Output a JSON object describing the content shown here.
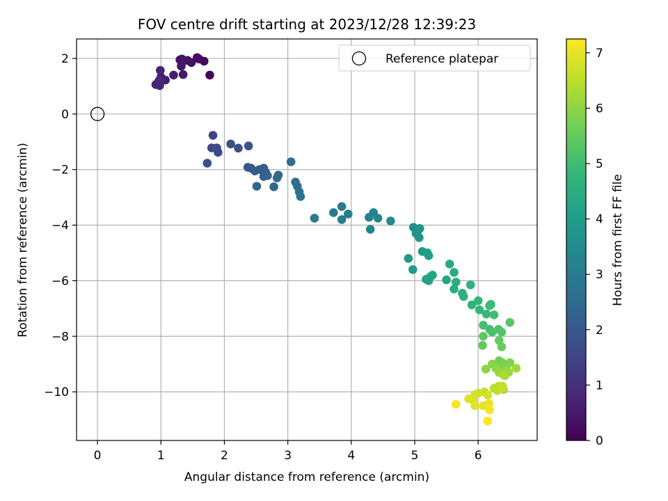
{
  "chart_data": {
    "type": "scatter",
    "title": "FOV centre drift starting at 2023/12/28 12:39:23",
    "xlabel": "Angular distance from reference (arcmin)",
    "ylabel": "Rotation from reference (arcmin)",
    "xlim": [
      -0.33,
      6.93
    ],
    "ylim": [
      -11.75,
      2.7
    ],
    "xticks": [
      0,
      1,
      2,
      3,
      4,
      5,
      6
    ],
    "yticks": [
      2,
      0,
      -2,
      -4,
      -6,
      -8,
      -10
    ],
    "xtick_labels": [
      "0",
      "1",
      "2",
      "3",
      "4",
      "5",
      "6"
    ],
    "ytick_labels": [
      "2",
      "0",
      "−2",
      "−4",
      "−6",
      "−8",
      "−10"
    ],
    "grid": true,
    "legend": {
      "position": "top-right",
      "label": "Reference platepar"
    },
    "reference_point": {
      "x": 0,
      "y": 0
    },
    "colorbar": {
      "label": "Hours from first FF file",
      "range": [
        0,
        7.25
      ],
      "ticks": [
        0,
        1,
        2,
        3,
        4,
        5,
        6,
        7
      ],
      "tick_labels": [
        "0",
        "1",
        "2",
        "3",
        "4",
        "5",
        "6",
        "7"
      ],
      "colormap": "viridis",
      "stops": [
        "#440154",
        "#482878",
        "#3e4989",
        "#31688e",
        "#26828e",
        "#1f9e89",
        "#35b779",
        "#6ece58",
        "#b5de2b",
        "#fde725"
      ]
    },
    "series": [
      {
        "points": [
          [
            1.77,
            1.4,
            0.05
          ],
          [
            1.68,
            1.9,
            0.1
          ],
          [
            1.6,
            1.98,
            0.15
          ],
          [
            1.57,
            2.03,
            0.2
          ],
          [
            1.48,
            1.85,
            0.25
          ],
          [
            1.42,
            1.93,
            0.3
          ],
          [
            1.33,
            1.98,
            0.35
          ],
          [
            1.3,
            1.95,
            0.4
          ],
          [
            1.33,
            1.85,
            0.42
          ],
          [
            1.32,
            1.72,
            0.45
          ],
          [
            1.35,
            1.42,
            0.5
          ],
          [
            1.2,
            1.4,
            0.55
          ],
          [
            1.07,
            1.22,
            0.6
          ],
          [
            1.0,
            1.33,
            0.65
          ],
          [
            0.99,
            1.57,
            0.7
          ],
          [
            0.92,
            1.06,
            0.72
          ],
          [
            0.98,
            1.02,
            0.75
          ],
          [
            0.97,
            1.2,
            0.78
          ],
          [
            1.82,
            -0.77,
            1.5
          ],
          [
            1.8,
            -1.22,
            1.55
          ],
          [
            1.88,
            -1.22,
            1.6
          ],
          [
            1.9,
            -1.38,
            1.65
          ],
          [
            1.73,
            -1.77,
            1.7
          ],
          [
            2.1,
            -1.08,
            1.8
          ],
          [
            2.22,
            -1.23,
            1.85
          ],
          [
            2.38,
            -1.15,
            1.9
          ],
          [
            2.37,
            -1.92,
            1.95
          ],
          [
            2.42,
            -1.95,
            2.0
          ],
          [
            2.48,
            -2.05,
            2.05
          ],
          [
            2.55,
            -2.0,
            2.1
          ],
          [
            2.62,
            -1.95,
            2.15
          ],
          [
            2.65,
            -2.1,
            2.2
          ],
          [
            2.62,
            -2.25,
            2.25
          ],
          [
            2.68,
            -2.22,
            2.3
          ],
          [
            2.51,
            -2.6,
            2.35
          ],
          [
            2.78,
            -2.62,
            2.4
          ],
          [
            2.85,
            -2.2,
            2.45
          ],
          [
            2.83,
            -2.3,
            2.5
          ],
          [
            3.05,
            -1.72,
            2.55
          ],
          [
            3.12,
            -2.45,
            2.6
          ],
          [
            3.15,
            -2.6,
            2.65
          ],
          [
            3.18,
            -2.8,
            2.7
          ],
          [
            3.2,
            -2.97,
            2.75
          ],
          [
            3.42,
            -3.75,
            2.9
          ],
          [
            3.72,
            -3.55,
            2.95
          ],
          [
            3.85,
            -3.33,
            3.0
          ],
          [
            3.85,
            -3.8,
            3.05
          ],
          [
            3.95,
            -3.6,
            3.1
          ],
          [
            4.28,
            -3.72,
            3.2
          ],
          [
            4.35,
            -3.55,
            3.25
          ],
          [
            4.3,
            -4.15,
            3.3
          ],
          [
            4.42,
            -3.75,
            3.35
          ],
          [
            4.62,
            -3.85,
            3.4
          ],
          [
            4.98,
            -4.08,
            3.6
          ],
          [
            5.05,
            -4.2,
            3.65
          ],
          [
            5.08,
            -4.12,
            3.7
          ],
          [
            5.02,
            -4.3,
            3.75
          ],
          [
            5.07,
            -4.45,
            3.8
          ],
          [
            4.9,
            -5.2,
            3.85
          ],
          [
            4.97,
            -5.6,
            3.9
          ],
          [
            5.12,
            -4.95,
            3.95
          ],
          [
            5.2,
            -5.0,
            4.0
          ],
          [
            5.22,
            -5.1,
            4.05
          ],
          [
            5.25,
            -5.85,
            4.1
          ],
          [
            5.18,
            -5.95,
            4.15
          ],
          [
            5.22,
            -6.0,
            4.2
          ],
          [
            5.28,
            -5.8,
            4.25
          ],
          [
            5.5,
            -5.97,
            4.3
          ],
          [
            5.55,
            -5.4,
            4.35
          ],
          [
            5.62,
            -5.7,
            4.4
          ],
          [
            5.65,
            -6.05,
            4.45
          ],
          [
            5.62,
            -6.3,
            4.5
          ],
          [
            5.75,
            -6.45,
            4.55
          ],
          [
            5.77,
            -6.57,
            4.6
          ],
          [
            5.88,
            -6.15,
            4.65
          ],
          [
            5.9,
            -6.87,
            4.7
          ],
          [
            6.0,
            -6.72,
            4.75
          ],
          [
            6.02,
            -7.05,
            4.8
          ],
          [
            6.13,
            -7.2,
            4.85
          ],
          [
            6.18,
            -6.9,
            4.9
          ],
          [
            6.2,
            -6.85,
            4.95
          ],
          [
            6.25,
            -7.23,
            5.0
          ],
          [
            6.08,
            -7.6,
            5.05
          ],
          [
            6.18,
            -7.75,
            5.1
          ],
          [
            6.22,
            -7.85,
            5.15
          ],
          [
            6.32,
            -7.75,
            5.2
          ],
          [
            6.37,
            -7.85,
            5.25
          ],
          [
            6.5,
            -7.5,
            5.3
          ],
          [
            6.08,
            -8.0,
            5.4
          ],
          [
            6.07,
            -8.33,
            5.45
          ],
          [
            6.33,
            -8.15,
            5.5
          ],
          [
            6.37,
            -8.38,
            5.55
          ],
          [
            6.33,
            -8.88,
            5.6
          ],
          [
            6.38,
            -8.95,
            5.7
          ],
          [
            6.35,
            -9.05,
            5.75
          ],
          [
            6.45,
            -9.05,
            5.8
          ],
          [
            6.5,
            -8.95,
            5.85
          ],
          [
            6.22,
            -9.0,
            5.9
          ],
          [
            6.12,
            -9.18,
            5.95
          ],
          [
            6.28,
            -9.15,
            6.0
          ],
          [
            6.33,
            -9.3,
            6.05
          ],
          [
            6.43,
            -9.25,
            6.1
          ],
          [
            6.48,
            -9.3,
            6.15
          ],
          [
            6.6,
            -9.15,
            6.2
          ],
          [
            6.38,
            -9.35,
            6.25
          ],
          [
            6.42,
            -9.42,
            6.3
          ],
          [
            6.38,
            -9.8,
            6.35
          ],
          [
            6.4,
            -9.92,
            6.4
          ],
          [
            6.32,
            -9.8,
            6.45
          ],
          [
            6.25,
            -9.87,
            6.5
          ],
          [
            6.3,
            -9.95,
            6.55
          ],
          [
            6.38,
            -9.85,
            6.6
          ],
          [
            6.1,
            -10.0,
            6.65
          ],
          [
            6.0,
            -10.05,
            6.7
          ],
          [
            5.95,
            -10.1,
            6.75
          ],
          [
            6.15,
            -10.12,
            6.8
          ],
          [
            5.92,
            -10.3,
            6.85
          ],
          [
            5.85,
            -10.25,
            6.9
          ],
          [
            5.95,
            -10.5,
            6.95
          ],
          [
            6.08,
            -10.5,
            7.0
          ],
          [
            6.17,
            -10.42,
            7.05
          ],
          [
            6.18,
            -10.65,
            7.1
          ],
          [
            5.65,
            -10.45,
            7.15
          ],
          [
            6.15,
            -11.05,
            7.2
          ]
        ]
      }
    ]
  }
}
